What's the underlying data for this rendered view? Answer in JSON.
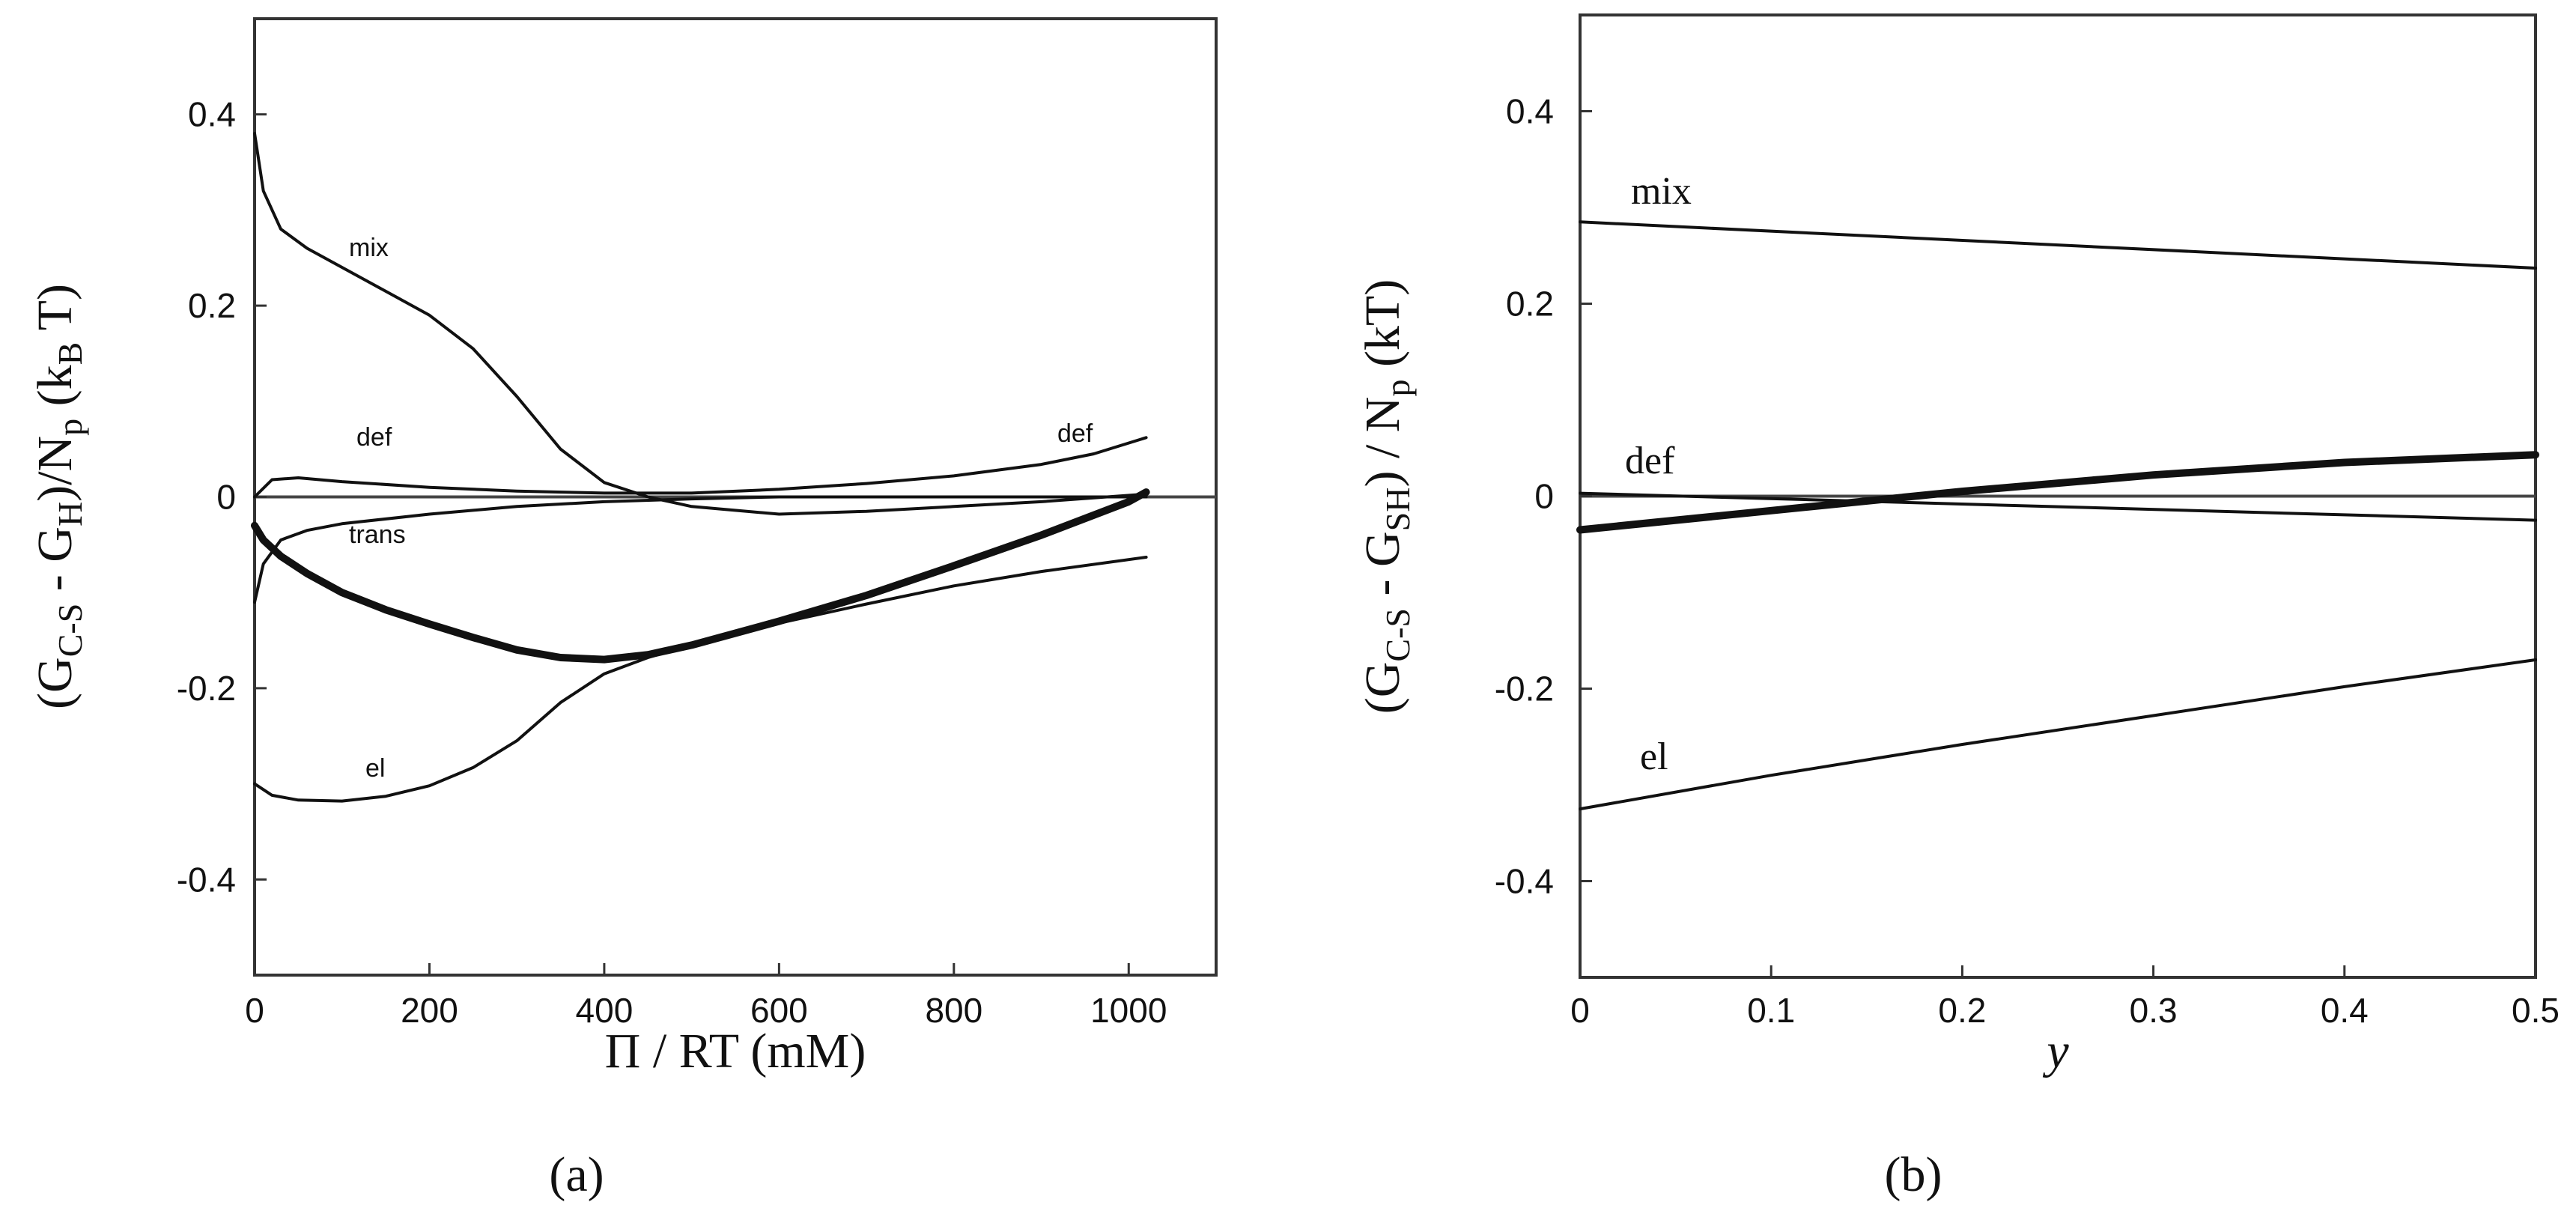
{
  "chart_data": [
    {
      "type": "line",
      "panel": "a",
      "panel_label": "(a)",
      "xlabel": "Π / RT (mM)",
      "ylabel": "(G_C-S - G_H)/N_p (k_B T)",
      "xlim": [
        0,
        1100
      ],
      "ylim": [
        -0.5,
        0.5
      ],
      "x_ticks": [
        0,
        200,
        400,
        600,
        800,
        1000
      ],
      "x_tick_labels": [
        "0",
        "200",
        "400",
        "600",
        "800",
        "1000"
      ],
      "y_ticks": [
        0.4,
        0.2,
        0,
        -0.2,
        -0.4
      ],
      "y_tick_labels": [
        "0.4",
        "0.2",
        "0",
        "-0.2",
        "-0.4"
      ],
      "series": [
        {
          "name": "mix",
          "label": "mix",
          "x": [
            0,
            10,
            30,
            60,
            100,
            150,
            200,
            250,
            300,
            350,
            400,
            450,
            500,
            600,
            700,
            800,
            900,
            1020
          ],
          "y": [
            0.38,
            0.32,
            0.28,
            0.26,
            0.24,
            0.215,
            0.19,
            0.155,
            0.105,
            0.05,
            0.015,
            0.0,
            -0.01,
            -0.018,
            -0.015,
            -0.01,
            -0.005,
            0.003
          ]
        },
        {
          "name": "def",
          "label": "def",
          "x": [
            0,
            20,
            50,
            100,
            200,
            300,
            400,
            500,
            600,
            700,
            800,
            900,
            960,
            1020
          ],
          "y": [
            0.0,
            0.018,
            0.02,
            0.016,
            0.01,
            0.006,
            0.004,
            0.004,
            0.008,
            0.014,
            0.022,
            0.034,
            0.045,
            0.062
          ]
        },
        {
          "name": "trans",
          "label": "trans",
          "x": [
            0,
            10,
            30,
            60,
            100,
            200,
            300,
            400,
            500,
            600,
            700,
            800,
            900,
            1020
          ],
          "y": [
            -0.11,
            -0.07,
            -0.045,
            -0.035,
            -0.028,
            -0.018,
            -0.01,
            -0.005,
            -0.002,
            0.0,
            0.0,
            0.0,
            0.0,
            0.0
          ]
        },
        {
          "name": "el",
          "label": "el",
          "x": [
            0,
            20,
            50,
            100,
            150,
            200,
            250,
            300,
            350,
            400,
            450,
            500,
            600,
            700,
            800,
            900,
            1020
          ],
          "y": [
            -0.3,
            -0.312,
            -0.317,
            -0.318,
            -0.313,
            -0.302,
            -0.283,
            -0.255,
            -0.215,
            -0.185,
            -0.168,
            -0.155,
            -0.132,
            -0.112,
            -0.093,
            -0.078,
            -0.063
          ]
        },
        {
          "name": "total",
          "label": "",
          "x": [
            0,
            10,
            30,
            60,
            100,
            150,
            200,
            250,
            300,
            350,
            400,
            450,
            500,
            600,
            700,
            800,
            900,
            1000,
            1020
          ],
          "y": [
            -0.03,
            -0.045,
            -0.062,
            -0.08,
            -0.1,
            -0.118,
            -0.133,
            -0.147,
            -0.16,
            -0.168,
            -0.17,
            -0.165,
            -0.155,
            -0.13,
            -0.103,
            -0.072,
            -0.04,
            -0.005,
            0.005
          ]
        }
      ]
    },
    {
      "type": "line",
      "panel": "b",
      "panel_label": "(b)",
      "xlabel": "y",
      "ylabel": "(G_C-S - G_SH) / N_p (kT)",
      "xlim": [
        0,
        0.5
      ],
      "ylim": [
        -0.5,
        0.5
      ],
      "x_ticks": [
        0,
        0.1,
        0.2,
        0.3,
        0.4,
        0.5
      ],
      "x_tick_labels": [
        "0",
        "0.1",
        "0.2",
        "0.3",
        "0.4",
        "0.5"
      ],
      "y_ticks": [
        0.4,
        0.2,
        0,
        -0.2,
        -0.4
      ],
      "y_tick_labels": [
        "0.4",
        "0.2",
        "0",
        "-0.2",
        "-0.4"
      ],
      "series": [
        {
          "name": "mix",
          "label": "mix",
          "x": [
            0,
            0.5
          ],
          "y": [
            0.285,
            0.237
          ]
        },
        {
          "name": "def",
          "label": "def",
          "x": [
            0,
            0.5
          ],
          "y": [
            0.003,
            -0.025
          ]
        },
        {
          "name": "total",
          "label": "",
          "x": [
            0,
            0.1,
            0.2,
            0.3,
            0.4,
            0.5
          ],
          "y": [
            -0.035,
            -0.015,
            0.005,
            0.022,
            0.035,
            0.043
          ]
        },
        {
          "name": "el",
          "label": "el",
          "x": [
            0,
            0.1,
            0.2,
            0.3,
            0.4,
            0.5
          ],
          "y": [
            -0.325,
            -0.29,
            -0.258,
            -0.228,
            -0.198,
            -0.17
          ]
        }
      ]
    }
  ]
}
